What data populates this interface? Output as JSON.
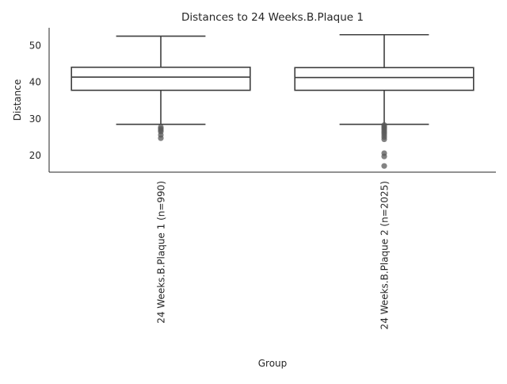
{
  "chart_data": {
    "type": "box",
    "title": "Distances to 24 Weeks.B.Plaque 1",
    "xlabel": "Group",
    "ylabel": "Distance",
    "ylim": [
      15.3,
      54.8
    ],
    "yticks": [
      20,
      30,
      40,
      50
    ],
    "grid": false,
    "legend": "none",
    "categories": [
      "24 Weeks.B.Plaque 1 (n=990)",
      "24 Weeks.B.Plaque 2 (n=2025)"
    ],
    "boxes": [
      {
        "whisker_low": 28.4,
        "q1": 37.7,
        "median": 41.3,
        "q3": 44.0,
        "whisker_high": 52.5,
        "outliers": [
          27.6,
          27.2,
          26.8,
          26.4,
          25.5,
          24.6
        ]
      },
      {
        "whisker_low": 28.4,
        "q1": 37.7,
        "median": 41.2,
        "q3": 43.9,
        "whisker_high": 52.9,
        "outliers": [
          28.2,
          27.8,
          27.4,
          27.0,
          26.5,
          26.0,
          25.5,
          24.9,
          24.3,
          20.5,
          19.6,
          17.0
        ]
      }
    ],
    "colors": {
      "box_edge": "#3f3f3f",
      "outlier": "#5a5a5a",
      "axis": "#262626"
    }
  }
}
